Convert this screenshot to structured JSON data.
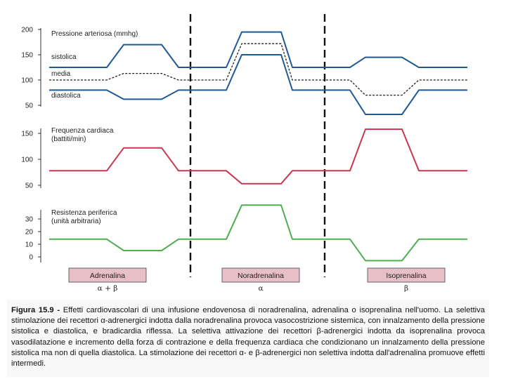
{
  "chart_data": [
    {
      "type": "line",
      "panel": "pressure",
      "title": "Pressione arteriosa (mmhg)",
      "yticks": [
        200,
        150,
        100,
        50
      ],
      "ylim": [
        40,
        205
      ],
      "x_steps": [
        0,
        1,
        2,
        3,
        4,
        5,
        6,
        7,
        8,
        9,
        10,
        11,
        12
      ],
      "series": [
        {
          "name": "sistolica",
          "color": "#1f5a96",
          "dashed": false,
          "values": [
            125,
            125,
            170,
            170,
            125,
            125,
            195,
            195,
            125,
            125,
            145,
            145,
            125
          ]
        },
        {
          "name": "media",
          "color": "#222222",
          "dashed": true,
          "values": [
            100,
            100,
            113,
            113,
            100,
            100,
            172,
            172,
            100,
            100,
            70,
            70,
            100
          ]
        },
        {
          "name": "diastolica",
          "color": "#1f5a96",
          "dashed": false,
          "values": [
            80,
            80,
            62,
            62,
            80,
            80,
            150,
            150,
            80,
            80,
            32,
            32,
            80
          ]
        }
      ]
    },
    {
      "type": "line",
      "panel": "heart-rate",
      "title": "Frequenza cardiaca",
      "subtitle": "(battiti/min)",
      "yticks": [
        150,
        100,
        50
      ],
      "ylim": [
        45,
        160
      ],
      "x_steps": [
        0,
        1,
        2,
        3,
        4,
        5,
        6,
        7,
        8,
        9,
        10,
        11,
        12
      ],
      "series": [
        {
          "name": "",
          "color": "#c8374f",
          "values": [
            78,
            78,
            122,
            122,
            78,
            78,
            53,
            53,
            78,
            78,
            158,
            158,
            78
          ]
        }
      ]
    },
    {
      "type": "line",
      "panel": "resistance",
      "title": "Resistenza periferica",
      "subtitle": "(unità arbitraria)",
      "yticks": [
        30,
        20,
        10,
        0
      ],
      "ylim": [
        -5,
        34
      ],
      "x_steps": [
        0,
        1,
        2,
        3,
        4,
        5,
        6,
        7,
        8,
        9,
        10,
        11,
        12
      ],
      "series": [
        {
          "name": "",
          "color": "#4caf50",
          "values": [
            14,
            14,
            5,
            5,
            14,
            14,
            41,
            41,
            14,
            14,
            -3,
            -3,
            14
          ]
        }
      ]
    }
  ],
  "drugs": [
    {
      "name": "Adrenalina",
      "receptor": "α + β"
    },
    {
      "name": "Noradrenalina",
      "receptor": "α"
    },
    {
      "name": "Isoprenalina",
      "receptor": "β"
    }
  ],
  "colors": {
    "drug_box": "#e8bfc6",
    "axis": "#333333",
    "divider": "#111111"
  },
  "caption": {
    "label": "Figura 15.9 - ",
    "text": "Effetti cardiovascolari di una infusione endovenosa di noradrenalina, adrenalina o isoprenalina nell'uomo. La selettiva stimolazione dei recettori α-adrenergici indotta dalla noradrenalina provoca vasocostrizione sistemica, con innalzamento della pressione sistolica e diastolica, e bradicardia riflessa. La selettiva attivazione dei recettori β-adrenergici indotta da isoprenalina provoca vasodilatazione e incremento della forza di contrazione e della frequenza cardiaca che condizionano un innalzamento della pressione sistolica ma non di quella diastolica. La stimolazione dei recettori α- e β-adrenergici non selettiva indotta dall'adrenalina promuove effetti intermedi."
  }
}
